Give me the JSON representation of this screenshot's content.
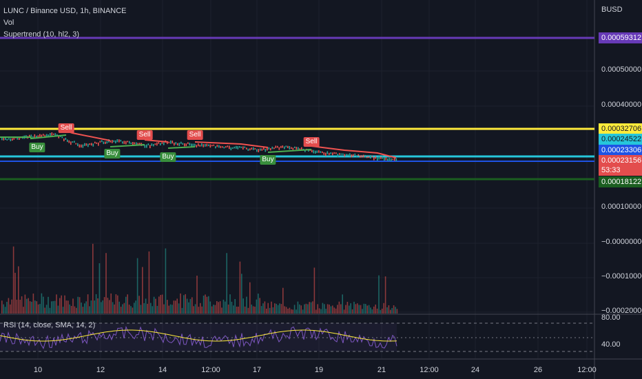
{
  "legend": {
    "symbol": "LUNC / Binance USD, 1h, BINANCE",
    "vol": "Vol",
    "supertrend": "Supertrend (10, hl2, 3)"
  },
  "rsi_legend": "RSI (14, close, SMA, 14, 2)",
  "currency": "BUSD",
  "price_ticks": [
    "0.00050000",
    "0.00040000",
    "0.00010000",
    "−0.00000000",
    "−0.00010000",
    "−0.00020000"
  ],
  "rsi_ticks": [
    "80.00",
    "40.00"
  ],
  "badges": [
    {
      "label": "0.00059312",
      "bg": "#673ab7",
      "fg": "#ffffff"
    },
    {
      "label": "0.00032706",
      "bg": "#ffeb3b",
      "fg": "#131722"
    },
    {
      "label": "0.00024522",
      "bg": "#26c6da",
      "fg": "#131722"
    },
    {
      "label": "0.00023306",
      "bg": "#1e53e5",
      "fg": "#ffffff"
    },
    {
      "label": "0.00023156",
      "bg": "#e34d4d",
      "fg": "#ffffff"
    },
    {
      "label": "0.00018122",
      "bg": "#1b5e20",
      "fg": "#ffffff"
    }
  ],
  "countdown": "53:33",
  "time_ticks": [
    "10",
    "12",
    "14",
    "12:00",
    "17",
    "19",
    "21",
    "12:00",
    "24",
    "26",
    "12:00"
  ],
  "signals": {
    "buy_label": "Buy",
    "sell_label": "Sell",
    "buy_color": "#388e3c",
    "sell_color": "#e34d4d"
  },
  "colors": {
    "background": "#131722",
    "up": "#26a69a",
    "down": "#ef5350",
    "supertrend_up": "#4caf50",
    "supertrend_down": "#ef5350",
    "rsi": "#7e57c2",
    "rsi_ma": "#ffeb3b"
  }
}
